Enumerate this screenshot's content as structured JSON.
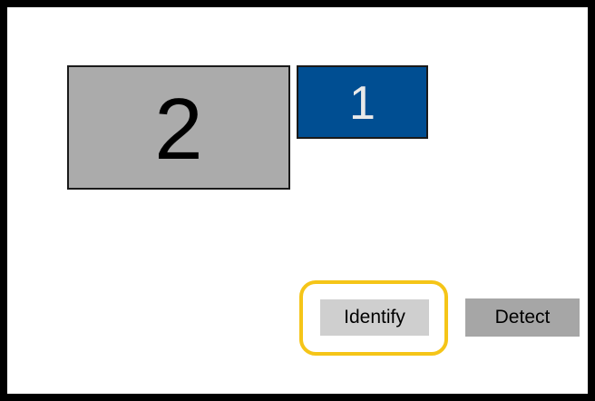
{
  "displays": {
    "monitors": [
      {
        "number": "2",
        "color": "#ababab",
        "number_color": "#000000"
      },
      {
        "number": "1",
        "color": "#004e92",
        "number_color": "#e9e9e9"
      }
    ]
  },
  "actions": {
    "identify_label": "Identify",
    "detect_label": "Detect",
    "highlight_color": "#f5c518"
  }
}
